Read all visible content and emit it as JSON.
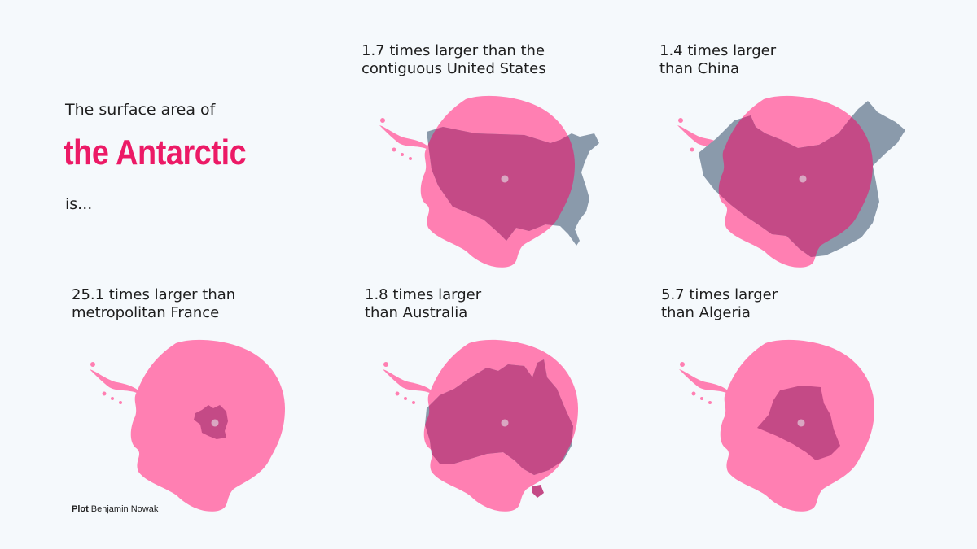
{
  "intro": {
    "top": "The surface area of",
    "headline": "the Antarctic",
    "bottom": "is..."
  },
  "colors": {
    "antarctica": "#ff7fb2",
    "overlap": "#c44a86",
    "country_outside": "#8a9aab",
    "center_dot": "#d9a7c2",
    "headline": "#ec1a66",
    "background": "#f5f9fc"
  },
  "panels": [
    {
      "id": "usa",
      "caption": "1.7 times larger than the\ncontiguous United States",
      "ratio": 1.7,
      "country": "contiguous United States"
    },
    {
      "id": "china",
      "caption": "1.4 times larger\nthan China",
      "ratio": 1.4,
      "country": "China"
    },
    {
      "id": "france",
      "caption": "25.1 times larger than\nmetropolitan France",
      "ratio": 25.1,
      "country": "metropolitan France"
    },
    {
      "id": "australia",
      "caption": "1.8 times larger\nthan Australia",
      "ratio": 1.8,
      "country": "Australia"
    },
    {
      "id": "algeria",
      "caption": "5.7 times larger\nthan Algeria",
      "ratio": 5.7,
      "country": "Algeria"
    }
  ],
  "credit": {
    "label": "Plot",
    "author": "Benjamin Nowak"
  }
}
